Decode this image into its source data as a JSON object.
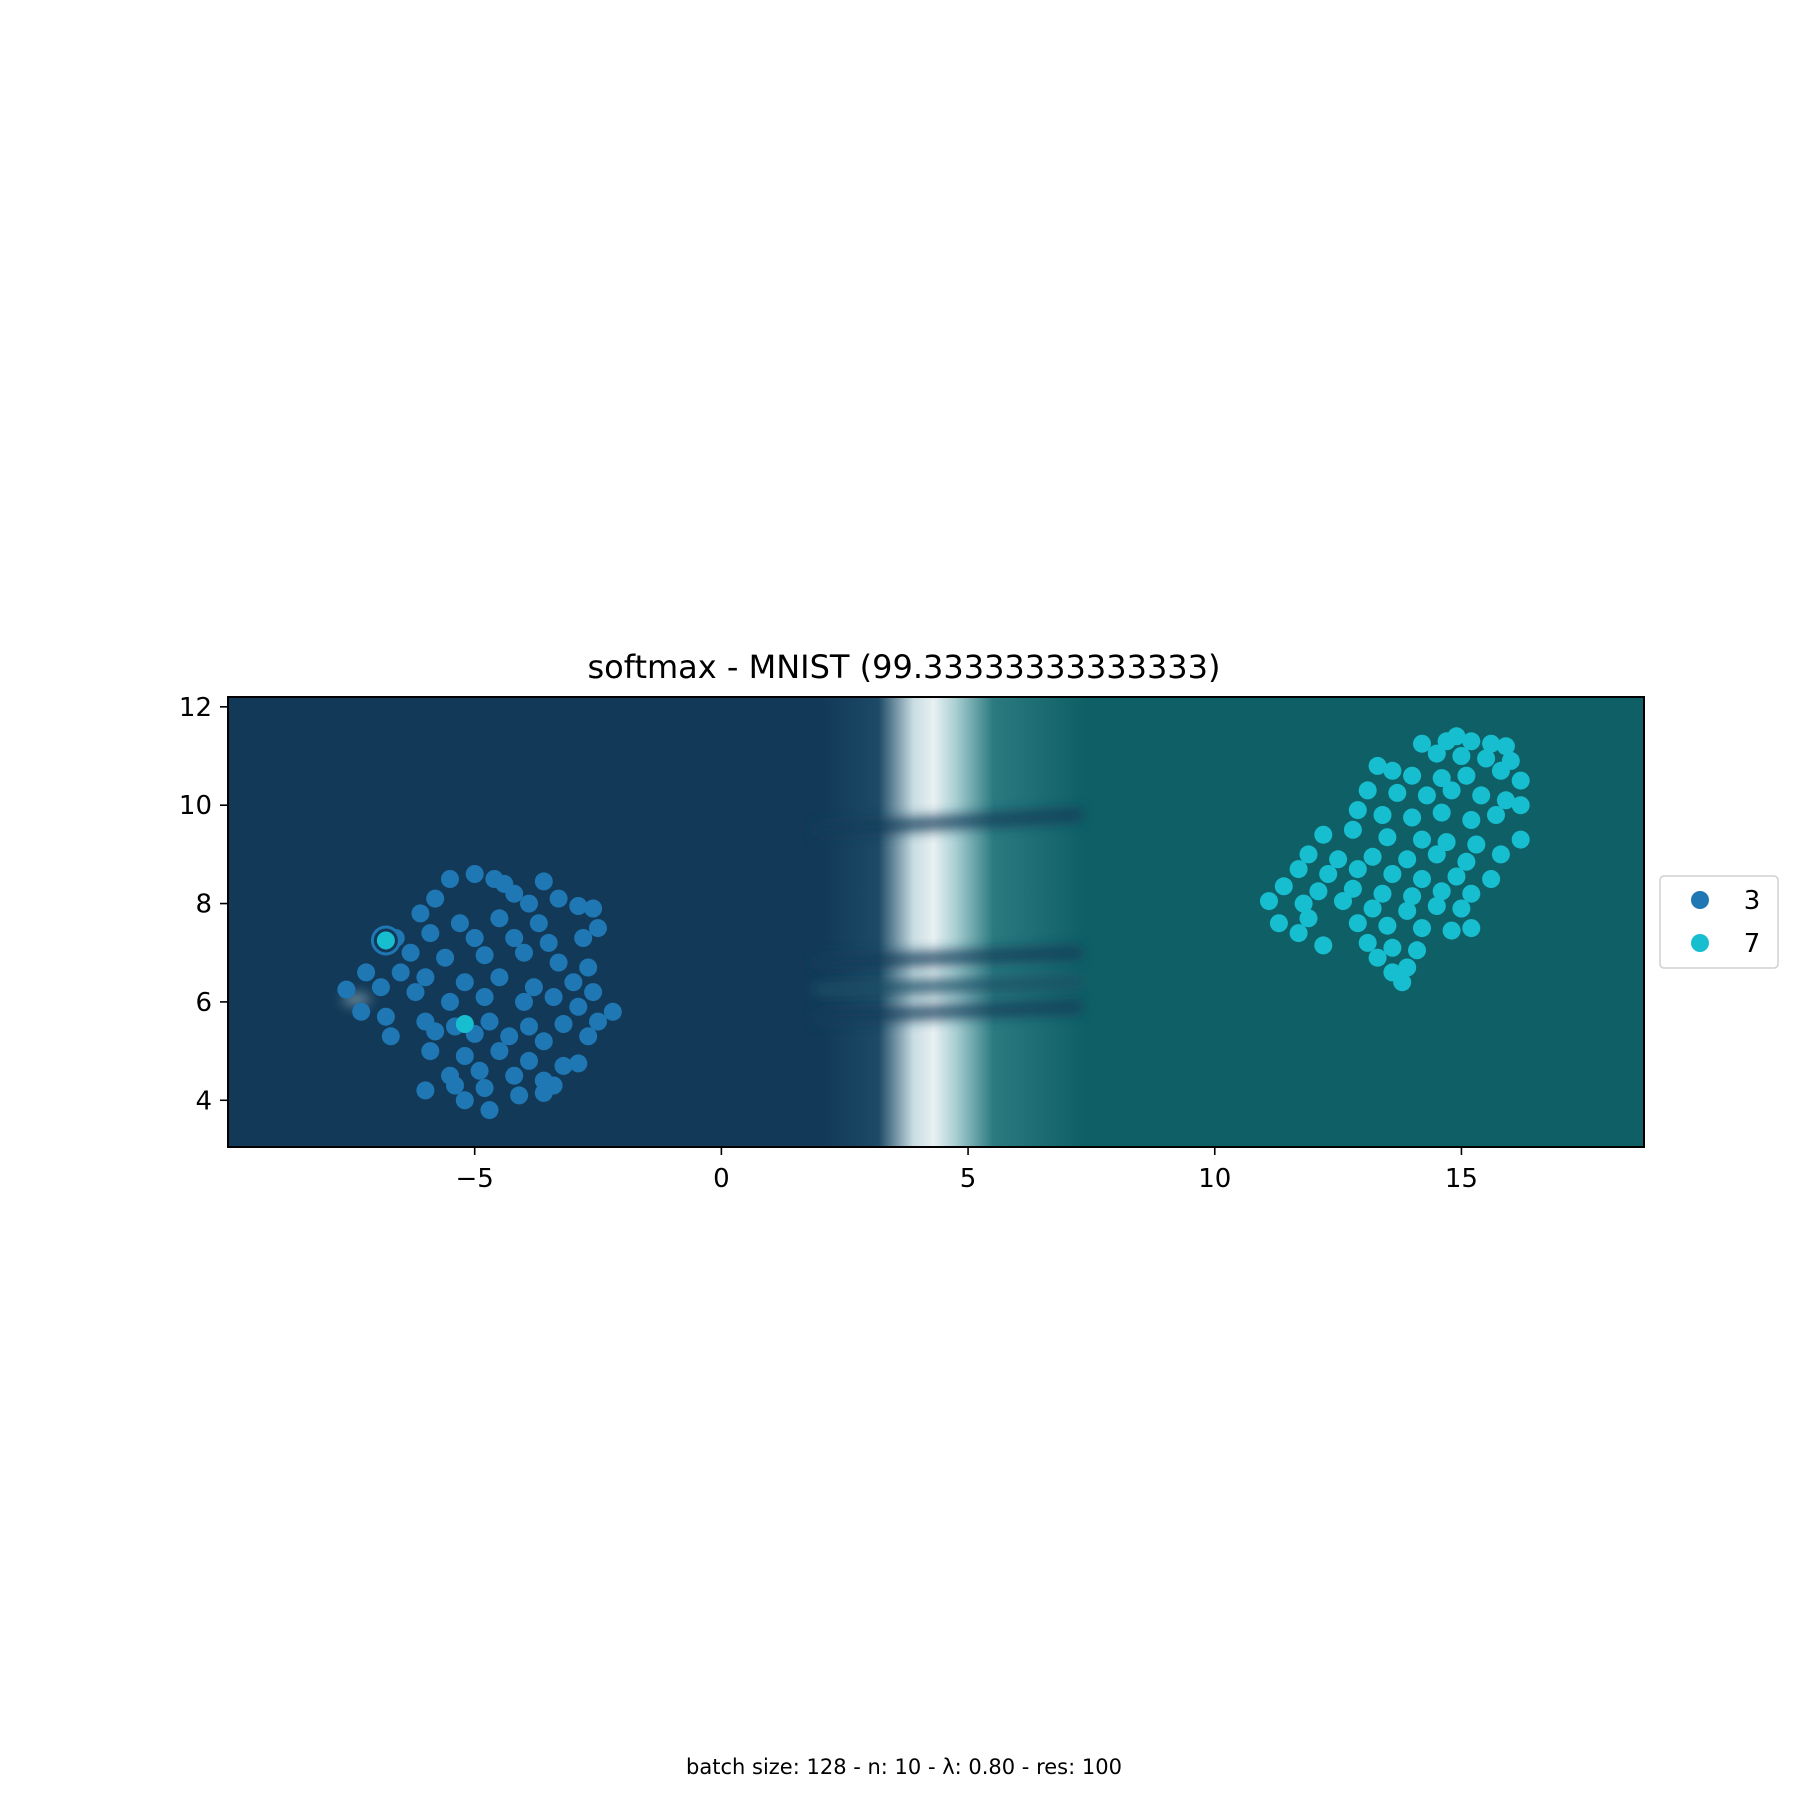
{
  "chart_data": {
    "type": "scatter",
    "title": "softmax - MNIST (99.33333333333333)",
    "xlabel": "",
    "ylabel": "",
    "xlim": [
      -10,
      18.7
    ],
    "ylim": [
      3.05,
      12.2
    ],
    "xticks": [
      -5,
      0,
      5,
      10,
      15
    ],
    "xtick_labels": [
      "−5",
      "0",
      "5",
      "10",
      "15"
    ],
    "yticks": [
      4,
      6,
      8,
      10,
      12
    ],
    "ytick_labels": [
      "4",
      "6",
      "8",
      "10",
      "12"
    ],
    "grid": false,
    "legend_position": "center right outside",
    "background": {
      "kind": "decision boundary heatmap",
      "left_class_color": "#123a58",
      "right_class_color": "#0f6066",
      "boundary_color": "#e8f0f2",
      "boundary_x_approx": 4.3
    },
    "series": [
      {
        "name": "3",
        "color": "#1f77b4",
        "cluster_center": [
          -4.6,
          6.4
        ],
        "points": [
          [
            -5.5,
            8.5
          ],
          [
            -5.0,
            8.6
          ],
          [
            -4.6,
            8.5
          ],
          [
            -4.4,
            8.4
          ],
          [
            -3.6,
            8.45
          ],
          [
            -4.2,
            8.2
          ],
          [
            -3.9,
            8.0
          ],
          [
            -3.3,
            8.1
          ],
          [
            -2.9,
            7.95
          ],
          [
            -2.6,
            7.9
          ],
          [
            -5.8,
            8.1
          ],
          [
            -6.1,
            7.8
          ],
          [
            -5.3,
            7.6
          ],
          [
            -4.5,
            7.7
          ],
          [
            -3.7,
            7.6
          ],
          [
            -2.5,
            7.5
          ],
          [
            -6.6,
            7.3
          ],
          [
            -5.9,
            7.4
          ],
          [
            -5.0,
            7.3
          ],
          [
            -4.2,
            7.3
          ],
          [
            -3.5,
            7.2
          ],
          [
            -2.8,
            7.3
          ],
          [
            -6.3,
            7.0
          ],
          [
            -5.6,
            6.9
          ],
          [
            -4.8,
            6.95
          ],
          [
            -4.0,
            7.0
          ],
          [
            -3.3,
            6.8
          ],
          [
            -2.7,
            6.7
          ],
          [
            -7.2,
            6.6
          ],
          [
            -6.5,
            6.6
          ],
          [
            -6.0,
            6.5
          ],
          [
            -5.2,
            6.4
          ],
          [
            -4.5,
            6.5
          ],
          [
            -3.8,
            6.3
          ],
          [
            -3.0,
            6.4
          ],
          [
            -2.6,
            6.2
          ],
          [
            -7.6,
            6.25
          ],
          [
            -6.9,
            6.3
          ],
          [
            -6.2,
            6.2
          ],
          [
            -5.5,
            6.0
          ],
          [
            -4.8,
            6.1
          ],
          [
            -4.0,
            6.0
          ],
          [
            -3.4,
            6.1
          ],
          [
            -2.9,
            5.9
          ],
          [
            -2.2,
            5.8
          ],
          [
            -7.3,
            5.8
          ],
          [
            -6.8,
            5.7
          ],
          [
            -6.0,
            5.6
          ],
          [
            -5.4,
            5.5
          ],
          [
            -4.7,
            5.6
          ],
          [
            -3.9,
            5.5
          ],
          [
            -3.2,
            5.55
          ],
          [
            -2.5,
            5.6
          ],
          [
            -6.7,
            5.3
          ],
          [
            -5.8,
            5.4
          ],
          [
            -5.0,
            5.35
          ],
          [
            -4.3,
            5.3
          ],
          [
            -3.6,
            5.2
          ],
          [
            -2.7,
            5.3
          ],
          [
            -5.9,
            5.0
          ],
          [
            -5.2,
            4.9
          ],
          [
            -4.5,
            5.0
          ],
          [
            -3.9,
            4.8
          ],
          [
            -3.2,
            4.7
          ],
          [
            -2.9,
            4.75
          ],
          [
            -5.5,
            4.5
          ],
          [
            -4.9,
            4.6
          ],
          [
            -4.2,
            4.5
          ],
          [
            -3.6,
            4.4
          ],
          [
            -3.4,
            4.3
          ],
          [
            -6.0,
            4.2
          ],
          [
            -5.4,
            4.3
          ],
          [
            -4.8,
            4.25
          ],
          [
            -4.1,
            4.1
          ],
          [
            -3.6,
            4.15
          ],
          [
            -5.2,
            4.0
          ],
          [
            -4.7,
            3.8
          ]
        ]
      },
      {
        "name": "7",
        "color": "#17becf",
        "cluster_center": [
          14.3,
          8.6
        ],
        "points": [
          [
            14.9,
            11.4
          ],
          [
            14.7,
            11.3
          ],
          [
            15.2,
            11.3
          ],
          [
            15.6,
            11.25
          ],
          [
            15.9,
            11.2
          ],
          [
            14.2,
            11.25
          ],
          [
            14.5,
            11.05
          ],
          [
            15.0,
            11.0
          ],
          [
            15.5,
            10.95
          ],
          [
            16.0,
            10.9
          ],
          [
            13.3,
            10.8
          ],
          [
            13.6,
            10.7
          ],
          [
            14.0,
            10.6
          ],
          [
            14.6,
            10.55
          ],
          [
            15.1,
            10.6
          ],
          [
            15.8,
            10.7
          ],
          [
            16.2,
            10.5
          ],
          [
            13.1,
            10.3
          ],
          [
            13.7,
            10.25
          ],
          [
            14.3,
            10.2
          ],
          [
            14.8,
            10.3
          ],
          [
            15.4,
            10.2
          ],
          [
            15.9,
            10.1
          ],
          [
            16.2,
            10.0
          ],
          [
            12.9,
            9.9
          ],
          [
            13.4,
            9.8
          ],
          [
            14.0,
            9.75
          ],
          [
            14.6,
            9.85
          ],
          [
            15.2,
            9.7
          ],
          [
            15.7,
            9.8
          ],
          [
            12.2,
            9.4
          ],
          [
            12.8,
            9.5
          ],
          [
            13.5,
            9.35
          ],
          [
            14.2,
            9.3
          ],
          [
            14.7,
            9.25
          ],
          [
            15.3,
            9.2
          ],
          [
            16.2,
            9.3
          ],
          [
            11.9,
            9.0
          ],
          [
            12.5,
            8.9
          ],
          [
            13.2,
            8.95
          ],
          [
            13.9,
            8.9
          ],
          [
            14.5,
            9.0
          ],
          [
            15.1,
            8.85
          ],
          [
            15.8,
            9.0
          ],
          [
            11.7,
            8.7
          ],
          [
            12.3,
            8.6
          ],
          [
            12.9,
            8.7
          ],
          [
            13.6,
            8.6
          ],
          [
            14.2,
            8.5
          ],
          [
            14.9,
            8.55
          ],
          [
            15.6,
            8.5
          ],
          [
            11.4,
            8.35
          ],
          [
            12.1,
            8.25
          ],
          [
            12.8,
            8.3
          ],
          [
            13.4,
            8.2
          ],
          [
            14.0,
            8.15
          ],
          [
            14.6,
            8.25
          ],
          [
            15.2,
            8.2
          ],
          [
            11.1,
            8.05
          ],
          [
            11.8,
            8.0
          ],
          [
            12.6,
            8.05
          ],
          [
            13.2,
            7.9
          ],
          [
            13.9,
            7.85
          ],
          [
            14.5,
            7.95
          ],
          [
            15.0,
            7.9
          ],
          [
            11.3,
            7.6
          ],
          [
            11.9,
            7.7
          ],
          [
            12.9,
            7.6
          ],
          [
            13.5,
            7.55
          ],
          [
            14.2,
            7.5
          ],
          [
            14.8,
            7.45
          ],
          [
            15.2,
            7.5
          ],
          [
            11.7,
            7.4
          ],
          [
            12.2,
            7.15
          ],
          [
            13.1,
            7.2
          ],
          [
            13.6,
            7.1
          ],
          [
            14.1,
            7.05
          ],
          [
            13.3,
            6.9
          ],
          [
            13.9,
            6.7
          ],
          [
            13.6,
            6.6
          ],
          [
            13.8,
            6.4
          ]
        ]
      }
    ],
    "highlighted_points": [
      {
        "x": -6.8,
        "y": 7.25,
        "class": "7",
        "ring_color": "#1f77b4"
      },
      {
        "x": -5.2,
        "y": 5.55,
        "class": "7"
      }
    ],
    "caption": "batch size: 128 - n: 10 - λ: 0.80 - res: 100"
  }
}
